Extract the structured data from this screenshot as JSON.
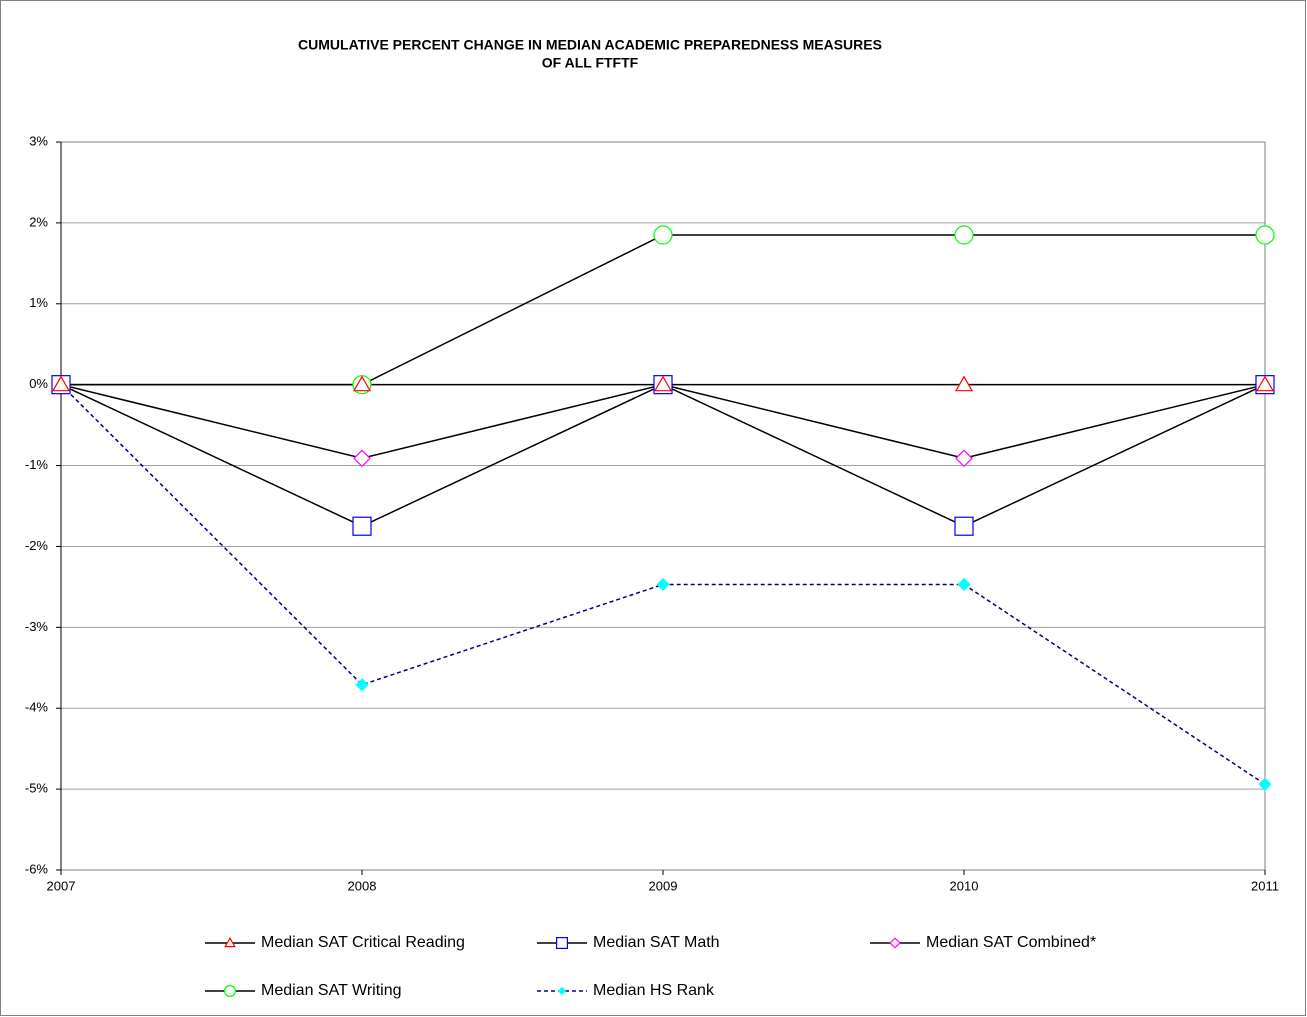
{
  "chart_data": {
    "type": "line",
    "title": [
      "CUMULATIVE PERCENT CHANGE IN MEDIAN ACADEMIC PREPAREDNESS MEASURES",
      "OF ALL FTFTF"
    ],
    "categories": [
      "2007",
      "2008",
      "2009",
      "2010",
      "2011"
    ],
    "ylim": [
      -6,
      3
    ],
    "yticks": [
      {
        "value": -6,
        "label": "-6%"
      },
      {
        "value": -5,
        "label": "-5%"
      },
      {
        "value": -4,
        "label": "-4%"
      },
      {
        "value": -3,
        "label": "-3%"
      },
      {
        "value": -2,
        "label": "-2%"
      },
      {
        "value": -1,
        "label": "-1%"
      },
      {
        "value": 0,
        "label": "0%"
      },
      {
        "value": 1,
        "label": "1%"
      },
      {
        "value": 2,
        "label": "2%"
      },
      {
        "value": 3,
        "label": "3%"
      }
    ],
    "grid": true,
    "legend": "bottom",
    "series": [
      {
        "name": "Median SAT Critical Reading",
        "color": "#ff0000",
        "marker": "triangle",
        "values": [
          0,
          0,
          0,
          0,
          0
        ]
      },
      {
        "name": "Median SAT Math",
        "color": "#0000ff",
        "marker": "square",
        "values": [
          0,
          -1.75,
          0,
          -1.75,
          0
        ]
      },
      {
        "name": "Median SAT Combined*",
        "color": "#ff00ff",
        "marker": "diamond",
        "values": [
          0,
          -0.91,
          0,
          -0.91,
          0
        ]
      },
      {
        "name": "Median SAT Writing",
        "color": "#00ff00",
        "marker": "circle",
        "values": [
          0,
          0,
          1.85,
          1.85,
          1.85
        ]
      },
      {
        "name": "Median HS Rank",
        "color": "#00ffff",
        "line_color": "#000080",
        "dashed": true,
        "marker": "filled-diamond",
        "values": [
          0,
          -3.71,
          -2.47,
          -2.47,
          -4.94
        ]
      }
    ]
  }
}
